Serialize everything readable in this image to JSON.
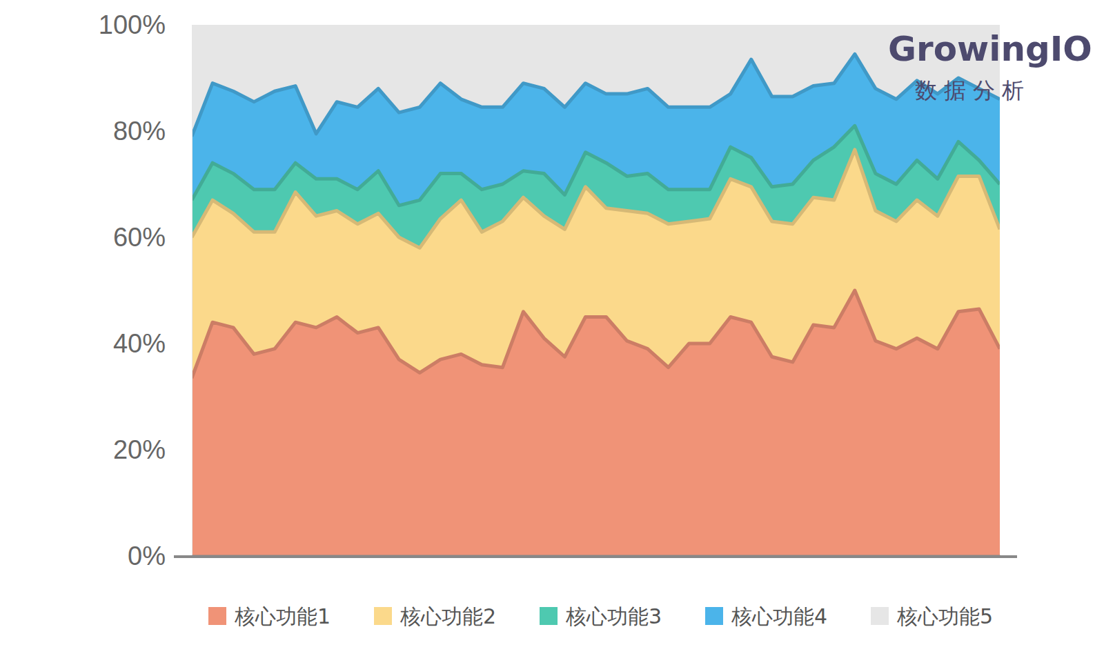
{
  "chart_data": {
    "type": "area",
    "stacked": true,
    "annotations": [
      "GrowingIO",
      "数据分析"
    ],
    "categories": [
      null,
      null,
      null,
      null,
      null,
      null,
      null,
      null,
      null,
      null,
      null,
      null,
      null,
      null,
      null,
      null,
      null,
      null,
      null,
      null,
      null,
      null,
      null,
      null,
      null,
      null,
      null,
      null,
      null,
      null,
      null,
      null,
      null,
      null,
      null,
      null,
      null,
      null,
      null,
      null
    ],
    "ylim": [
      0,
      100
    ],
    "yticks": [
      {
        "value": 0,
        "label": "0%"
      },
      {
        "value": 20,
        "label": "20%"
      },
      {
        "value": 40,
        "label": "40%"
      },
      {
        "value": 60,
        "label": "60%"
      },
      {
        "value": 80,
        "label": "80%"
      },
      {
        "value": 100,
        "label": "100%"
      }
    ],
    "legend": "bottom",
    "series": [
      {
        "name": "核心功能1",
        "color": "#f09377",
        "values": [
          33.5,
          44,
          43,
          38,
          39,
          44,
          43,
          45,
          42,
          43,
          37,
          34.5,
          37,
          38,
          36,
          35.5,
          46,
          41,
          37.5,
          45,
          45,
          40.5,
          39,
          35.5,
          40,
          40,
          45,
          44,
          37.5,
          36.5,
          43.5,
          43,
          50,
          40.5,
          39,
          41,
          39,
          46,
          46.5,
          39
        ]
      },
      {
        "name": "核心功能2",
        "color": "#fbd98b",
        "values": [
          26.5,
          23,
          21.5,
          23,
          22,
          24.5,
          21,
          20,
          20.5,
          21.5,
          23,
          23.5,
          26.5,
          29,
          25,
          27.5,
          21.5,
          23,
          24,
          24.5,
          20.5,
          24.5,
          25.5,
          27,
          23,
          23.5,
          26,
          25.5,
          25.5,
          26,
          24,
          24,
          26.5,
          24.5,
          24,
          26,
          25,
          25.5,
          25,
          22.5
        ]
      },
      {
        "name": "核心功能3",
        "color": "#4ec9b0",
        "values": [
          7,
          7,
          7.5,
          8,
          8,
          5.5,
          7,
          6,
          6.5,
          8,
          6,
          9,
          8.5,
          5,
          8,
          7,
          5,
          8,
          6.5,
          6.5,
          8.5,
          6.5,
          7.5,
          6.5,
          6,
          5.5,
          6,
          5.5,
          6.5,
          7.5,
          7,
          10,
          4.5,
          7,
          7,
          7.5,
          7,
          6.5,
          3,
          8.5
        ]
      },
      {
        "name": "核心功能4",
        "color": "#4bb4ea",
        "values": [
          12,
          15,
          15.5,
          16.5,
          18.5,
          14.5,
          8.5,
          14.5,
          15.5,
          15.5,
          17.5,
          17.5,
          17,
          14,
          15.5,
          14.5,
          16.5,
          16,
          16.5,
          13,
          13,
          15.5,
          16,
          15.5,
          15.5,
          15.5,
          10,
          18.5,
          17,
          16.5,
          14,
          12,
          13.5,
          16,
          16,
          15,
          16,
          12,
          13.5,
          16
        ]
      },
      {
        "name": "核心功能5",
        "color": "#e6e6e6",
        "values": [
          21,
          11,
          12.5,
          14.5,
          12.5,
          11.5,
          20.5,
          14.5,
          15.5,
          12,
          16.5,
          15.5,
          11,
          14,
          15.5,
          15.5,
          11,
          12,
          15.5,
          11,
          13,
          13,
          12,
          15.5,
          15.5,
          15.5,
          13,
          6.5,
          13.5,
          13.5,
          11.5,
          11,
          5.5,
          12,
          14,
          10.5,
          13,
          10,
          12,
          14
        ]
      }
    ]
  }
}
